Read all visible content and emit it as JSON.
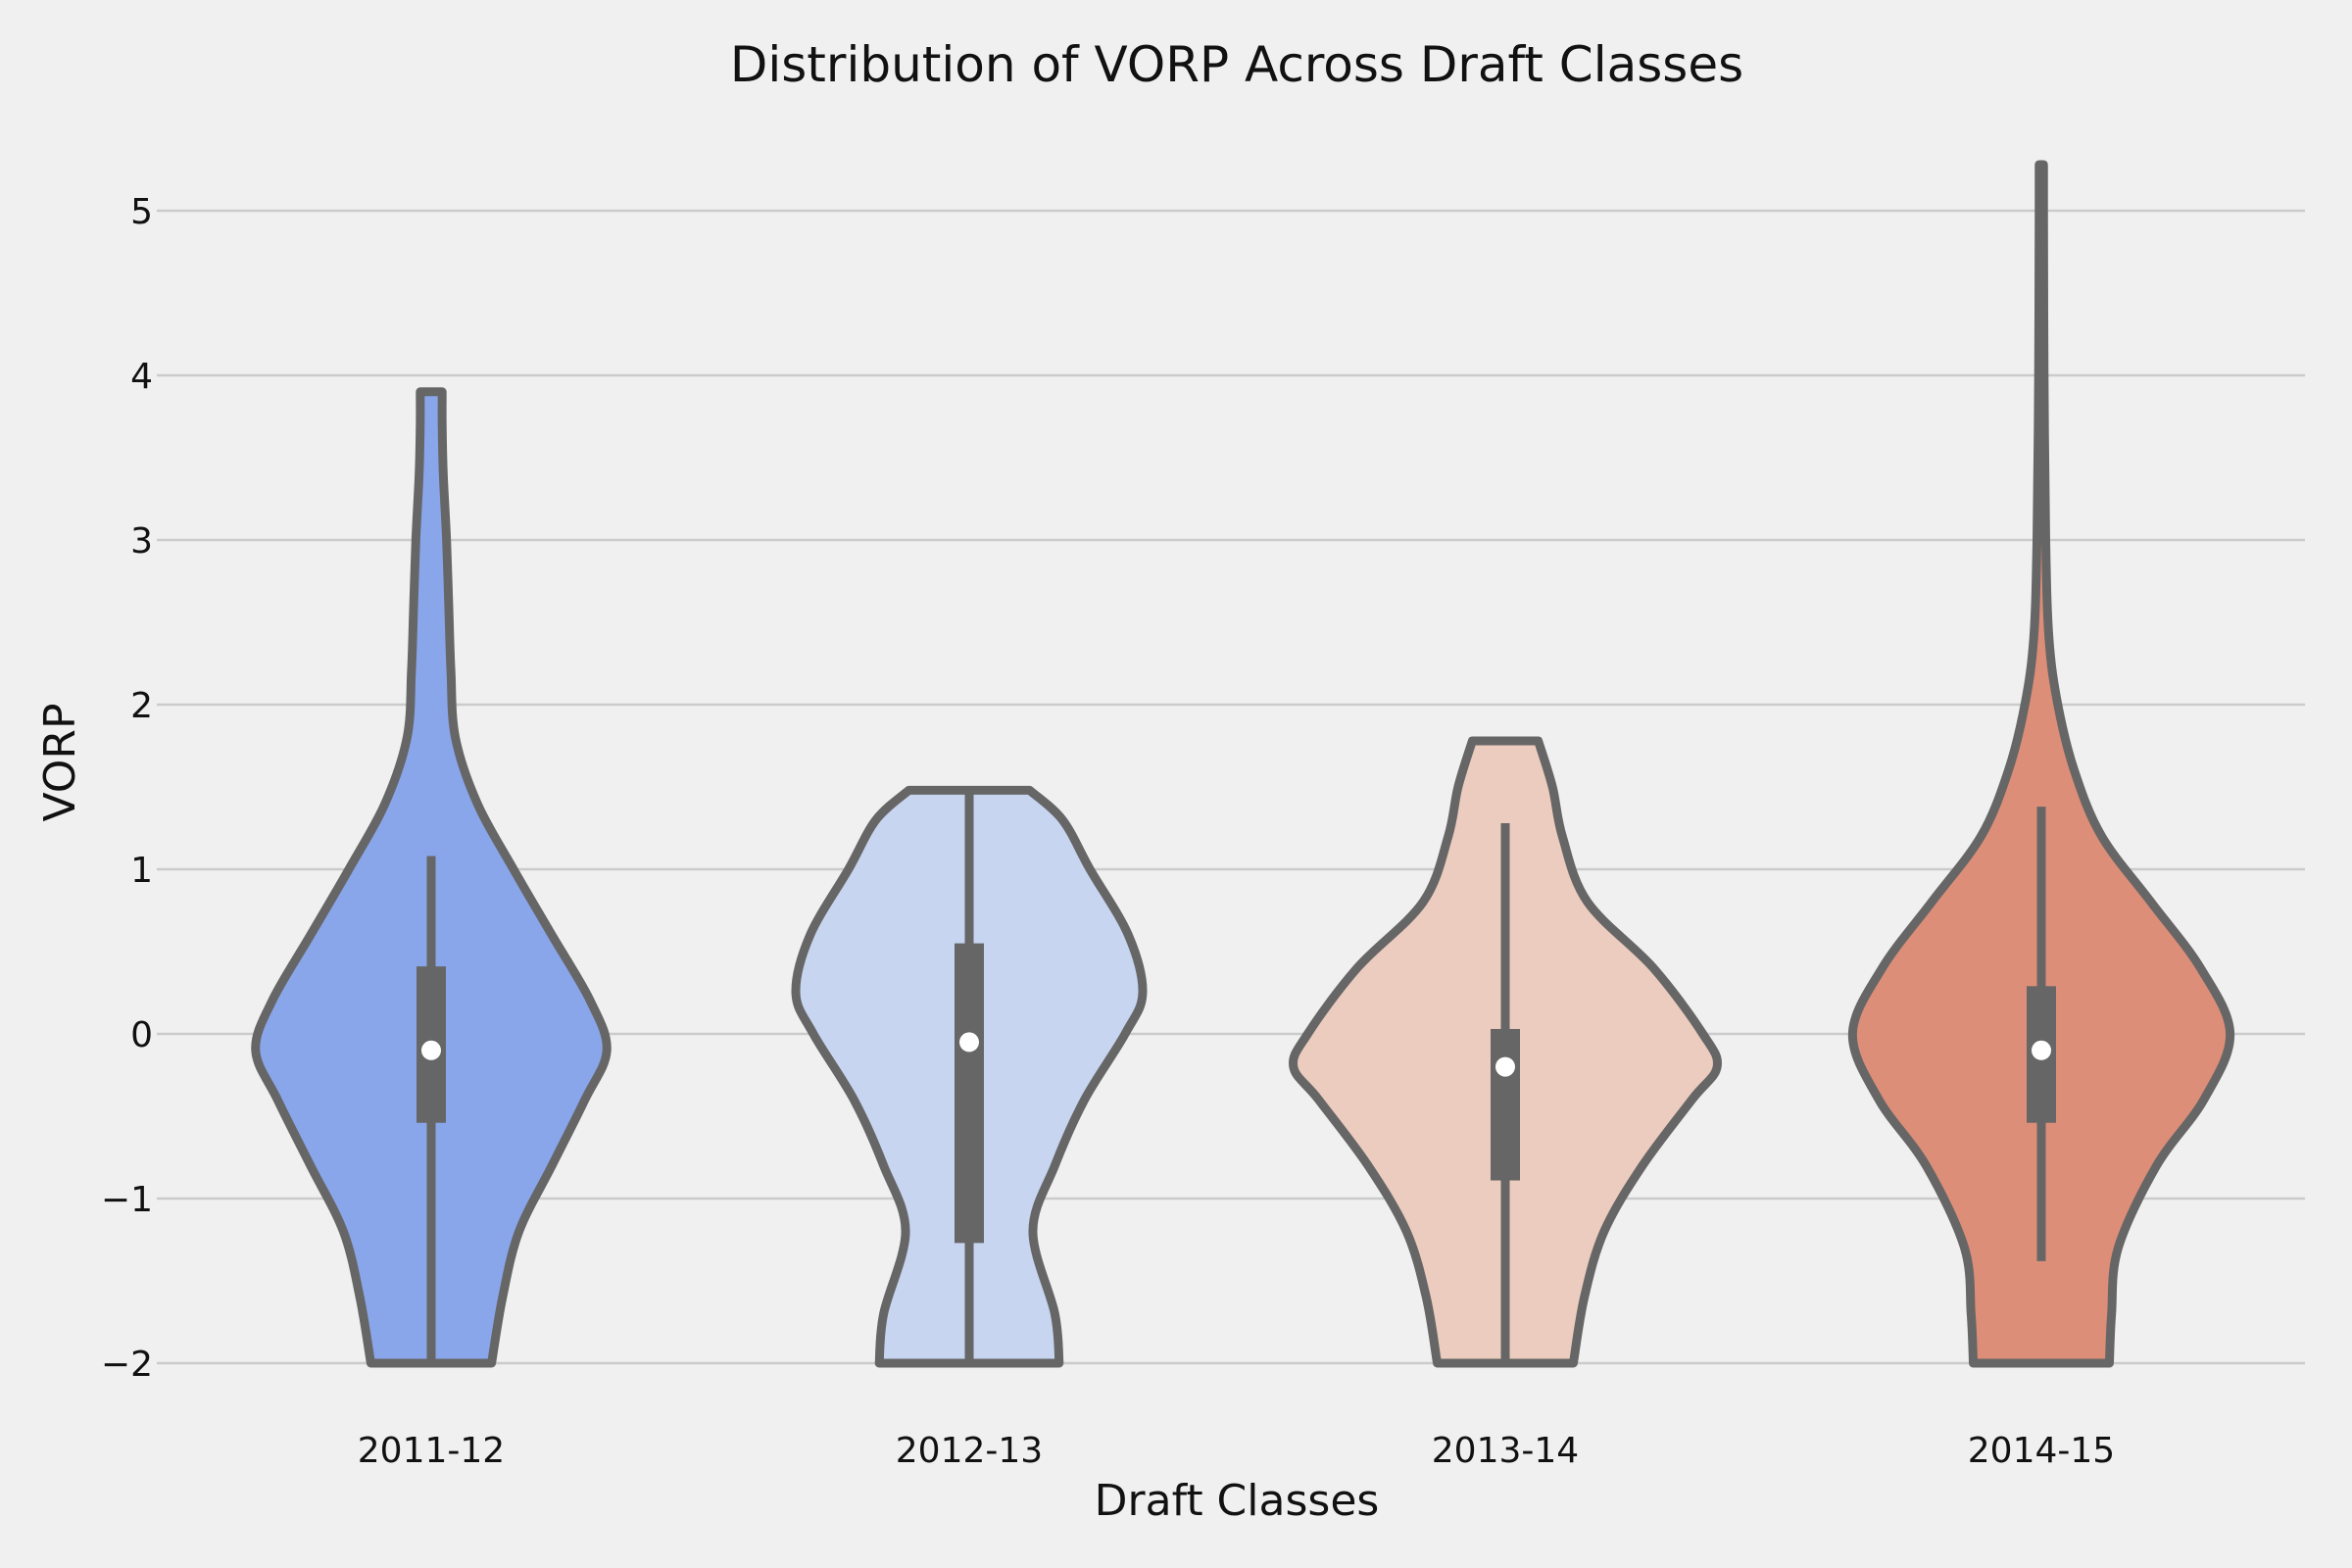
{
  "chart_data": {
    "type": "violin",
    "title": "Distribution of VORP Across Draft Classes",
    "xlabel": "Draft Classes",
    "ylabel": "VORP",
    "ylim": [
      -2.2,
      5.5
    ],
    "yticks": [
      -2,
      -1,
      0,
      1,
      2,
      3,
      4,
      5
    ],
    "ytick_labels": [
      "−2",
      "−1",
      "0",
      "1",
      "2",
      "3",
      "4",
      "5"
    ],
    "grid": true,
    "categories": [
      "2011-12",
      "2012-13",
      "2013-14",
      "2014-15"
    ],
    "series": [
      {
        "category": "2011-12",
        "color": "#8aa6eb",
        "min": -2.0,
        "max": 3.9,
        "q1": -0.54,
        "median": -0.1,
        "q3": 0.41,
        "whisker_low": -2.0,
        "whisker_high": 1.08,
        "density": [
          [
            -2.0,
            0.55
          ],
          [
            -1.6,
            0.65
          ],
          [
            -1.2,
            0.8
          ],
          [
            -0.8,
            1.1
          ],
          [
            -0.4,
            1.4
          ],
          [
            -0.1,
            1.6
          ],
          [
            0.2,
            1.45
          ],
          [
            0.6,
            1.1
          ],
          [
            1.0,
            0.75
          ],
          [
            1.4,
            0.42
          ],
          [
            1.8,
            0.22
          ],
          [
            2.2,
            0.18
          ],
          [
            2.6,
            0.16
          ],
          [
            3.0,
            0.14
          ],
          [
            3.4,
            0.11
          ],
          [
            3.7,
            0.1
          ],
          [
            3.9,
            0.1
          ]
        ]
      },
      {
        "category": "2012-13",
        "color": "#c7d5f0",
        "min": -2.0,
        "max": 1.48,
        "q1": -1.27,
        "median": -0.05,
        "q3": 0.55,
        "whisker_low": -2.0,
        "whisker_high": 1.48,
        "density": [
          [
            -2.0,
            0.82
          ],
          [
            -1.7,
            0.78
          ],
          [
            -1.2,
            0.58
          ],
          [
            -0.8,
            0.78
          ],
          [
            -0.4,
            1.05
          ],
          [
            0.0,
            1.42
          ],
          [
            0.25,
            1.58
          ],
          [
            0.6,
            1.45
          ],
          [
            1.0,
            1.1
          ],
          [
            1.3,
            0.85
          ],
          [
            1.48,
            0.55
          ]
        ]
      },
      {
        "category": "2013-14",
        "color": "#ecccbf",
        "min": -2.0,
        "max": 1.78,
        "q1": -0.89,
        "median": -0.2,
        "q3": 0.03,
        "whisker_low": -2.0,
        "whisker_high": 1.28,
        "density": [
          [
            -2.0,
            0.62
          ],
          [
            -1.6,
            0.72
          ],
          [
            -1.2,
            0.9
          ],
          [
            -0.8,
            1.25
          ],
          [
            -0.4,
            1.7
          ],
          [
            -0.2,
            1.93
          ],
          [
            0.0,
            1.8
          ],
          [
            0.4,
            1.35
          ],
          [
            0.8,
            0.75
          ],
          [
            1.2,
            0.52
          ],
          [
            1.5,
            0.43
          ],
          [
            1.78,
            0.3
          ]
        ]
      },
      {
        "category": "2014-15",
        "color": "#dd8e78",
        "min": -2.0,
        "max": 5.28,
        "q1": -0.54,
        "median": -0.1,
        "q3": 0.29,
        "whisker_low": -1.38,
        "whisker_high": 1.38,
        "density": [
          [
            -2.0,
            0.62
          ],
          [
            -1.7,
            0.64
          ],
          [
            -1.3,
            0.7
          ],
          [
            -0.8,
            1.05
          ],
          [
            -0.4,
            1.48
          ],
          [
            0.0,
            1.72
          ],
          [
            0.4,
            1.45
          ],
          [
            0.8,
            1.0
          ],
          [
            1.2,
            0.55
          ],
          [
            1.6,
            0.3
          ],
          [
            2.0,
            0.15
          ],
          [
            2.4,
            0.07
          ],
          [
            3.0,
            0.04
          ],
          [
            4.0,
            0.025
          ],
          [
            5.0,
            0.02
          ],
          [
            5.28,
            0.02
          ]
        ]
      }
    ]
  }
}
